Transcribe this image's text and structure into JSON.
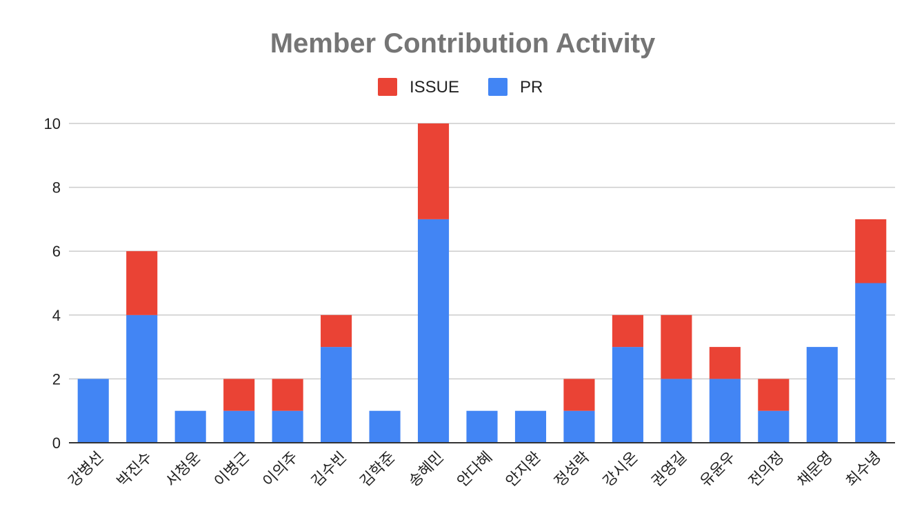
{
  "chart_data": {
    "type": "bar",
    "stacked": true,
    "title": "Member Contribution Activity",
    "xlabel": "",
    "ylabel": "",
    "ylim": [
      0,
      10
    ],
    "yticks": [
      0,
      2,
      4,
      6,
      8,
      10
    ],
    "grid": true,
    "legend_position": "top",
    "categories": [
      "강병선",
      "박진수",
      "서청운",
      "이병근",
      "이의주",
      "김수빈",
      "김학준",
      "송혜민",
      "안다혜",
      "안지완",
      "정성락",
      "강시온",
      "권영길",
      "유윤우",
      "전의정",
      "채문영",
      "최수녕"
    ],
    "series": [
      {
        "name": "PR",
        "color": "#4285f4",
        "values": [
          2,
          4,
          1,
          1,
          1,
          3,
          1,
          7,
          1,
          1,
          1,
          3,
          2,
          2,
          1,
          3,
          5
        ]
      },
      {
        "name": "ISSUE",
        "color": "#ea4335",
        "values": [
          0,
          2,
          0,
          1,
          1,
          1,
          0,
          3,
          0,
          0,
          1,
          1,
          2,
          1,
          1,
          0,
          2
        ]
      }
    ],
    "legend_order": [
      "ISSUE",
      "PR"
    ]
  }
}
